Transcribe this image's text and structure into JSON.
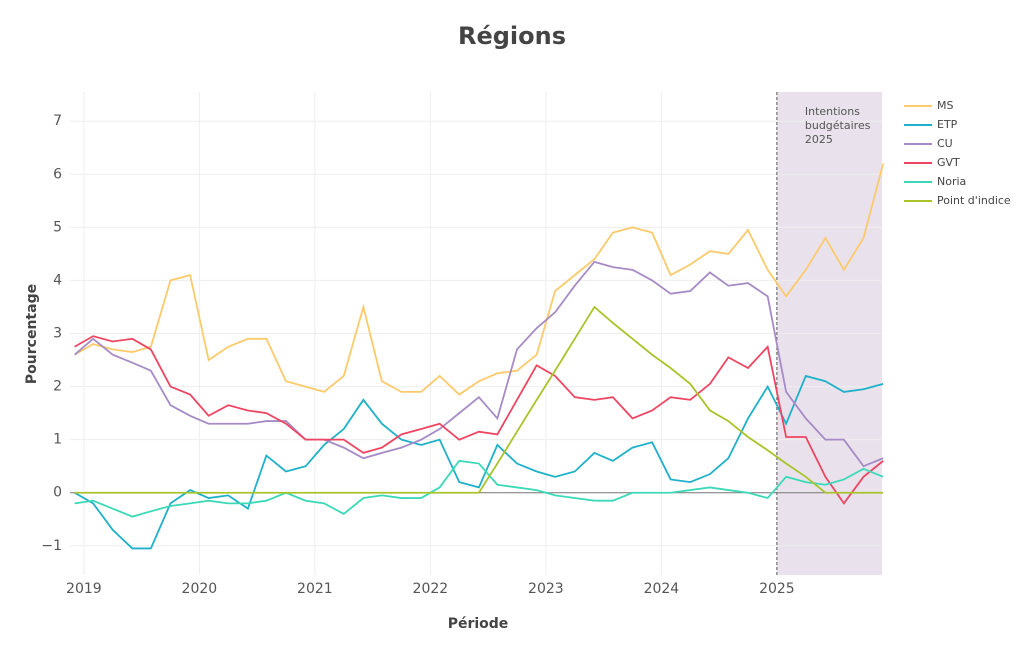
{
  "chart_data": {
    "type": "line",
    "title": "Régions",
    "x_label": "Période",
    "y_label": "Pourcentage",
    "x": [
      2018.92,
      2019.08,
      2019.25,
      2019.42,
      2019.58,
      2019.75,
      2019.92,
      2020.08,
      2020.25,
      2020.42,
      2020.58,
      2020.75,
      2020.92,
      2021.08,
      2021.25,
      2021.42,
      2021.58,
      2021.75,
      2021.92,
      2022.08,
      2022.25,
      2022.42,
      2022.58,
      2022.75,
      2022.92,
      2023.08,
      2023.25,
      2023.42,
      2023.58,
      2023.75,
      2023.92,
      2024.08,
      2024.25,
      2024.42,
      2024.58,
      2024.75,
      2024.92,
      2025.08,
      2025.25,
      2025.42,
      2025.58,
      2025.75,
      2025.92
    ],
    "series": [
      {
        "name": "MS",
        "color": "#fcca6a",
        "values": [
          2.6,
          2.8,
          2.7,
          2.65,
          2.75,
          4.0,
          4.1,
          2.5,
          2.75,
          2.9,
          2.9,
          2.1,
          2.0,
          1.9,
          2.2,
          3.5,
          2.1,
          1.9,
          1.9,
          2.2,
          1.85,
          2.1,
          2.25,
          2.3,
          2.6,
          3.8,
          4.1,
          4.4,
          4.9,
          5.0,
          4.9,
          4.1,
          4.3,
          4.55,
          4.5,
          4.95,
          4.2,
          3.7,
          4.2,
          4.8,
          4.2,
          4.8,
          6.2
        ]
      },
      {
        "name": "ETP",
        "color": "#1eb1c9",
        "values": [
          0.0,
          -0.2,
          -0.7,
          -1.05,
          -1.05,
          -0.2,
          0.05,
          -0.1,
          -0.05,
          -0.3,
          0.7,
          0.4,
          0.5,
          0.9,
          1.2,
          1.75,
          1.3,
          1.0,
          0.9,
          1.0,
          0.2,
          0.1,
          0.9,
          0.55,
          0.4,
          0.3,
          0.4,
          0.75,
          0.6,
          0.85,
          0.95,
          0.25,
          0.2,
          0.35,
          0.65,
          1.4,
          2.0,
          1.3,
          2.2,
          2.1,
          1.9,
          1.95,
          2.05
        ]
      },
      {
        "name": "CU",
        "color": "#a68bc6",
        "values": [
          2.6,
          2.9,
          2.6,
          2.45,
          2.3,
          1.65,
          1.45,
          1.3,
          1.3,
          1.3,
          1.35,
          1.35,
          1.0,
          1.0,
          0.85,
          0.65,
          0.75,
          0.85,
          1.0,
          1.2,
          1.5,
          1.8,
          1.4,
          2.7,
          3.1,
          3.4,
          3.9,
          4.35,
          4.25,
          4.2,
          4.0,
          3.75,
          3.8,
          4.15,
          3.9,
          3.95,
          3.7,
          1.9,
          1.4,
          1.0,
          1.0,
          0.5,
          0.65
        ]
      },
      {
        "name": "GVT",
        "color": "#ee4662",
        "values": [
          2.75,
          2.95,
          2.85,
          2.9,
          2.7,
          2.0,
          1.85,
          1.45,
          1.65,
          1.55,
          1.5,
          1.3,
          1.0,
          1.0,
          1.0,
          0.75,
          0.85,
          1.1,
          1.2,
          1.3,
          1.0,
          1.15,
          1.1,
          1.75,
          2.4,
          2.2,
          1.8,
          1.75,
          1.8,
          1.4,
          1.55,
          1.8,
          1.75,
          2.05,
          2.55,
          2.35,
          2.75,
          1.05,
          1.05,
          0.3,
          -0.2,
          0.3,
          0.6
        ]
      },
      {
        "name": "Noria",
        "color": "#3bd9b7",
        "values": [
          -0.2,
          -0.15,
          -0.3,
          -0.45,
          -0.35,
          -0.25,
          -0.2,
          -0.15,
          -0.2,
          -0.2,
          -0.15,
          0.0,
          -0.15,
          -0.2,
          -0.4,
          -0.1,
          -0.05,
          -0.1,
          -0.1,
          0.1,
          0.6,
          0.55,
          0.15,
          0.1,
          0.05,
          -0.05,
          -0.1,
          -0.15,
          -0.15,
          0.0,
          0.0,
          0.0,
          0.05,
          0.1,
          0.05,
          0.0,
          -0.1,
          0.3,
          0.2,
          0.15,
          0.25,
          0.45,
          0.3
        ]
      },
      {
        "name": "Point d'indice",
        "color": "#a9c42a",
        "values": [
          0,
          0,
          0,
          0,
          0,
          0,
          0,
          0,
          0,
          0,
          0,
          0,
          0,
          0,
          0,
          0,
          0,
          0,
          0,
          0,
          0,
          0,
          0.55,
          1.15,
          1.75,
          2.3,
          2.9,
          3.5,
          3.2,
          2.9,
          2.6,
          2.35,
          2.05,
          1.55,
          1.35,
          1.05,
          0.8,
          0.55,
          0.3,
          0.0,
          0,
          0,
          0
        ]
      }
    ],
    "xlim": [
      2018.88,
      2025.91
    ],
    "xticks": [
      2019,
      2020,
      2021,
      2022,
      2023,
      2024,
      2025
    ],
    "ylim": [
      -1.55,
      7.55
    ],
    "yticks": [
      {
        "value": -1,
        "label": "−1"
      },
      0,
      1,
      2,
      3,
      4,
      5,
      6,
      7
    ],
    "grid": true,
    "legend": "right",
    "annotation": {
      "text": [
        "Intentions",
        "budgétaires",
        "2025"
      ],
      "x": 2025,
      "color": "#e9e2ec"
    }
  }
}
